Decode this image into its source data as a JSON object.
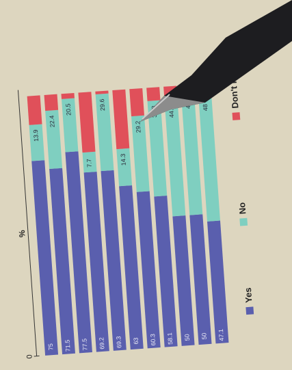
{
  "chart_data": {
    "type": "stacked_bar",
    "unit_label": "%",
    "categories": [
      null,
      null,
      null,
      null,
      null,
      null,
      null,
      null,
      null,
      null,
      null
    ],
    "series": [
      {
        "name": "Yes",
        "color": "#5a5fae",
        "values": [
          75,
          71.5,
          77.5,
          69.2,
          69.3,
          63,
          60.3,
          58.1,
          50,
          50,
          47.1
        ]
      },
      {
        "name": "No",
        "color": "#7fcfc0",
        "values": [
          13.9,
          22.4,
          20.5,
          7.7,
          29.6,
          14.3,
          29.2,
          36.8,
          44.4,
          47.4,
          48
        ]
      },
      {
        "name": "Don't know",
        "color": "#e0505a",
        "values": [
          11.1,
          6.1,
          2,
          23.1,
          1.1,
          22.7,
          10.5,
          5.1,
          5.6,
          2.6,
          4.9
        ]
      }
    ],
    "ylim": [
      0,
      100
    ],
    "yticks": [
      0
    ]
  }
}
